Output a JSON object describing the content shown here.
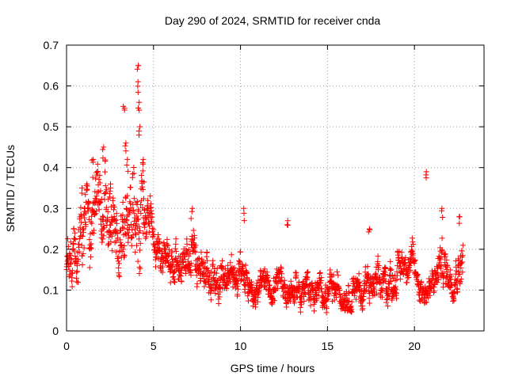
{
  "chart_data": {
    "type": "scatter",
    "title": "Day 290 of 2024, SRMTID for receiver cnda",
    "xlabel": "GPS time / hours",
    "ylabel": "SRMTID / TECUs",
    "xlim": [
      0,
      24
    ],
    "ylim": [
      0,
      0.7
    ],
    "xticks": [
      "0",
      "5",
      "10",
      "15",
      "20"
    ],
    "yticks": [
      "0",
      "0.1",
      "0.2",
      "0.3",
      "0.4",
      "0.5",
      "0.6",
      "0.7"
    ],
    "grid": true,
    "marker": "+",
    "color": "#ff0000",
    "series": [
      {
        "name": "SRMTID",
        "profile": [
          [
            0.0,
            0.17,
            0.06
          ],
          [
            0.5,
            0.2,
            0.08
          ],
          [
            1.0,
            0.25,
            0.09
          ],
          [
            1.5,
            0.3,
            0.1
          ],
          [
            2.0,
            0.3,
            0.11
          ],
          [
            2.5,
            0.25,
            0.1
          ],
          [
            3.0,
            0.2,
            0.08
          ],
          [
            3.5,
            0.27,
            0.12
          ],
          [
            4.0,
            0.24,
            0.12
          ],
          [
            4.3,
            0.32,
            0.15
          ],
          [
            4.6,
            0.3,
            0.08
          ],
          [
            5.0,
            0.2,
            0.05
          ],
          [
            6.0,
            0.18,
            0.05
          ],
          [
            7.0,
            0.16,
            0.05
          ],
          [
            7.5,
            0.2,
            0.06
          ],
          [
            8.0,
            0.14,
            0.05
          ],
          [
            9.0,
            0.14,
            0.05
          ],
          [
            10.0,
            0.13,
            0.05
          ],
          [
            10.5,
            0.11,
            0.04
          ],
          [
            11.0,
            0.1,
            0.04
          ],
          [
            12.0,
            0.11,
            0.04
          ],
          [
            13.0,
            0.1,
            0.04
          ],
          [
            14.0,
            0.1,
            0.04
          ],
          [
            15.0,
            0.09,
            0.04
          ],
          [
            16.0,
            0.1,
            0.04
          ],
          [
            17.0,
            0.11,
            0.05
          ],
          [
            18.0,
            0.1,
            0.05
          ],
          [
            19.0,
            0.14,
            0.05
          ],
          [
            19.5,
            0.18,
            0.04
          ],
          [
            20.0,
            0.15,
            0.05
          ],
          [
            20.5,
            0.1,
            0.04
          ],
          [
            21.0,
            0.1,
            0.04
          ],
          [
            21.5,
            0.17,
            0.06
          ],
          [
            22.0,
            0.14,
            0.05
          ],
          [
            22.5,
            0.16,
            0.05
          ],
          [
            22.8,
            0.18,
            0.06
          ]
        ],
        "peaks": [
          [
            0.9,
            0.35
          ],
          [
            1.5,
            0.42
          ],
          [
            2.1,
            0.45
          ],
          [
            2.5,
            0.36
          ],
          [
            3.3,
            0.55
          ],
          [
            3.4,
            0.46
          ],
          [
            3.5,
            0.42
          ],
          [
            4.1,
            0.65
          ],
          [
            4.1,
            0.61
          ],
          [
            4.15,
            0.56
          ],
          [
            4.2,
            0.5
          ],
          [
            4.4,
            0.42
          ],
          [
            7.2,
            0.3
          ],
          [
            10.2,
            0.3
          ],
          [
            12.7,
            0.27
          ],
          [
            17.4,
            0.25
          ],
          [
            20.7,
            0.39
          ],
          [
            21.6,
            0.3
          ],
          [
            22.6,
            0.28
          ]
        ]
      }
    ]
  }
}
